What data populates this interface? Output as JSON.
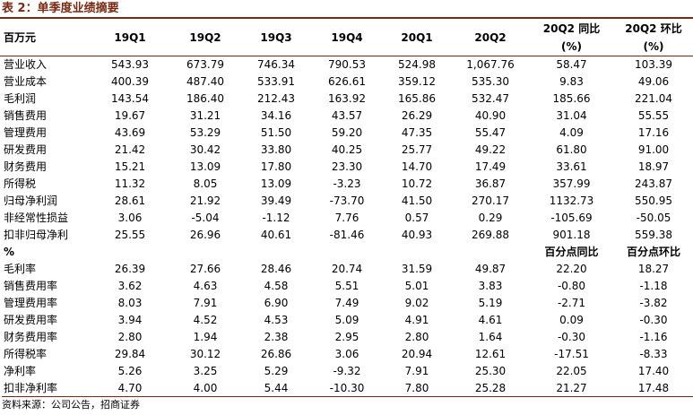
{
  "title": "表 2：单季度业绩摘要",
  "header": {
    "unit": "百万元",
    "columns": [
      "19Q1",
      "19Q2",
      "19Q3",
      "19Q4",
      "20Q1",
      "20Q2"
    ],
    "yoy_line1": "20Q2 同比",
    "yoy_line2": "(%)",
    "qoq_line1": "20Q2 环比",
    "qoq_line2": "(%)"
  },
  "rows": [
    {
      "label": "营业收入",
      "values": [
        "543.93",
        "673.79",
        "746.34",
        "790.53",
        "524.98",
        "1,067.76",
        "58.47",
        "103.39"
      ]
    },
    {
      "label": "营业成本",
      "values": [
        "400.39",
        "487.40",
        "533.91",
        "626.61",
        "359.12",
        "535.30",
        "9.83",
        "49.06"
      ]
    },
    {
      "label": "毛利润",
      "values": [
        "143.54",
        "186.40",
        "212.43",
        "163.92",
        "165.86",
        "532.47",
        "185.66",
        "221.04"
      ]
    },
    {
      "label": "销售费用",
      "values": [
        "19.67",
        "31.21",
        "34.16",
        "43.57",
        "26.29",
        "40.90",
        "31.04",
        "55.55"
      ]
    },
    {
      "label": "管理费用",
      "values": [
        "43.69",
        "53.29",
        "51.50",
        "59.20",
        "47.35",
        "55.47",
        "4.09",
        "17.16"
      ]
    },
    {
      "label": "研发费用",
      "values": [
        "21.42",
        "30.42",
        "33.80",
        "40.25",
        "25.77",
        "49.22",
        "61.80",
        "91.00"
      ]
    },
    {
      "label": "财务费用",
      "values": [
        "15.21",
        "13.09",
        "17.80",
        "23.30",
        "14.70",
        "17.49",
        "33.61",
        "18.97"
      ]
    },
    {
      "label": "所得税",
      "values": [
        "11.32",
        "8.05",
        "13.09",
        "-3.23",
        "10.72",
        "36.87",
        "357.99",
        "243.87"
      ]
    },
    {
      "label": "归母净利润",
      "values": [
        "28.61",
        "21.92",
        "39.49",
        "-73.70",
        "41.50",
        "270.17",
        "1132.73",
        "550.95"
      ]
    },
    {
      "label": "非经常性损益",
      "values": [
        "3.06",
        "-5.04",
        "-1.12",
        "7.76",
        "0.57",
        "0.29",
        "-105.69",
        "-50.05"
      ]
    },
    {
      "label": "扣非归母净利",
      "values": [
        "25.55",
        "26.96",
        "40.61",
        "-81.46",
        "40.93",
        "269.88",
        "901.18",
        "559.38"
      ]
    }
  ],
  "pct_section": {
    "label": "%",
    "yoy_label": "百分点同比",
    "qoq_label": "百分点环比"
  },
  "pct_rows": [
    {
      "label": "毛利率",
      "values": [
        "26.39",
        "27.66",
        "28.46",
        "20.74",
        "31.59",
        "49.87",
        "22.20",
        "18.27"
      ]
    },
    {
      "label": "销售费用率",
      "values": [
        "3.62",
        "4.63",
        "4.58",
        "5.51",
        "5.01",
        "3.83",
        "-0.80",
        "-1.18"
      ]
    },
    {
      "label": "管理费用率",
      "values": [
        "8.03",
        "7.91",
        "6.90",
        "7.49",
        "9.02",
        "5.19",
        "-2.71",
        "-3.82"
      ]
    },
    {
      "label": "研发费用率",
      "values": [
        "3.94",
        "4.52",
        "4.53",
        "5.09",
        "4.91",
        "4.61",
        "0.09",
        "-0.30"
      ]
    },
    {
      "label": "财务费用率",
      "values": [
        "2.80",
        "1.94",
        "2.38",
        "2.95",
        "2.80",
        "1.64",
        "-0.30",
        "-1.16"
      ]
    },
    {
      "label": "所得税率",
      "values": [
        "29.84",
        "30.12",
        "26.86",
        "3.06",
        "20.94",
        "12.61",
        "-17.51",
        "-8.33"
      ]
    },
    {
      "label": "净利率",
      "values": [
        "5.26",
        "3.25",
        "5.29",
        "-9.32",
        "7.91",
        "25.30",
        "22.05",
        "17.40"
      ]
    },
    {
      "label": "扣非净利率",
      "values": [
        "4.70",
        "4.00",
        "5.44",
        "-10.30",
        "7.80",
        "25.28",
        "21.27",
        "17.48"
      ]
    }
  ],
  "footnote": "资料来源：公司公告，招商证券"
}
